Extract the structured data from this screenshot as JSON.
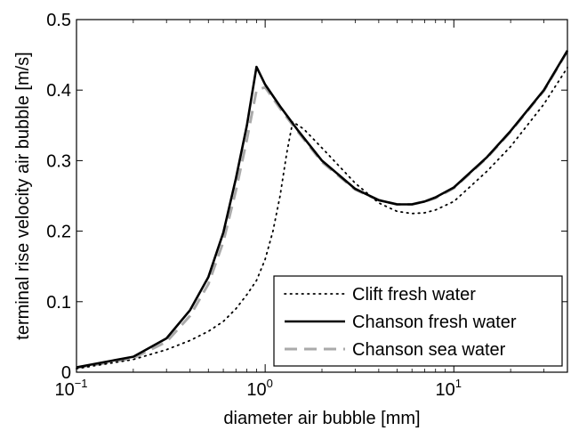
{
  "chart_data": {
    "type": "line",
    "title": "",
    "xlabel": "diameter air bubble [mm]",
    "ylabel": "terminal rise velocity air bubble [m/s]",
    "xscale": "log",
    "xlim": [
      0.1,
      40
    ],
    "ylim": [
      0,
      0.5
    ],
    "grid": false,
    "legend_position": "bottom-right",
    "x_ticks": [
      {
        "value": 0.1,
        "base": "10",
        "exp": "−1"
      },
      {
        "value": 1,
        "base": "10",
        "exp": "0"
      },
      {
        "value": 10,
        "base": "10",
        "exp": "1"
      }
    ],
    "y_ticks": [
      {
        "value": 0,
        "label": "0"
      },
      {
        "value": 0.1,
        "label": "0.1"
      },
      {
        "value": 0.2,
        "label": "0.2"
      },
      {
        "value": 0.3,
        "label": "0.3"
      },
      {
        "value": 0.4,
        "label": "0.4"
      },
      {
        "value": 0.5,
        "label": "0.5"
      }
    ],
    "series": [
      {
        "name": "Clift fresh water",
        "style": "dotted",
        "color": "#000000",
        "x": [
          0.1,
          0.2,
          0.3,
          0.4,
          0.5,
          0.6,
          0.7,
          0.8,
          0.9,
          1.0,
          1.1,
          1.2,
          1.3,
          1.4,
          1.6,
          2,
          3,
          4,
          5,
          6,
          7,
          8,
          10,
          15,
          20,
          30,
          40
        ],
        "y": [
          0.005,
          0.018,
          0.032,
          0.045,
          0.058,
          0.072,
          0.09,
          0.11,
          0.13,
          0.16,
          0.2,
          0.25,
          0.31,
          0.355,
          0.345,
          0.318,
          0.268,
          0.24,
          0.228,
          0.225,
          0.226,
          0.23,
          0.242,
          0.285,
          0.32,
          0.38,
          0.432
        ]
      },
      {
        "name": "Chanson fresh water",
        "style": "solid",
        "color": "#000000",
        "x": [
          0.1,
          0.2,
          0.3,
          0.4,
          0.5,
          0.6,
          0.7,
          0.8,
          0.9,
          1.0,
          1.2,
          1.5,
          2,
          3,
          4,
          5,
          6,
          7,
          8,
          10,
          15,
          20,
          30,
          40
        ],
        "y": [
          0.007,
          0.022,
          0.048,
          0.088,
          0.135,
          0.198,
          0.275,
          0.35,
          0.433,
          0.408,
          0.377,
          0.342,
          0.3,
          0.26,
          0.244,
          0.238,
          0.238,
          0.242,
          0.248,
          0.262,
          0.305,
          0.342,
          0.4,
          0.456
        ]
      },
      {
        "name": "Chanson sea water",
        "style": "dashed",
        "color": "#aaaaaa",
        "x": [
          0.1,
          0.2,
          0.3,
          0.4,
          0.5,
          0.6,
          0.7,
          0.8,
          0.9,
          1.0,
          1.2,
          1.5,
          2,
          3,
          4,
          5,
          6,
          7,
          8,
          10,
          15,
          20,
          30,
          40
        ],
        "y": [
          0.006,
          0.02,
          0.043,
          0.08,
          0.125,
          0.185,
          0.258,
          0.33,
          0.4,
          0.404,
          0.374,
          0.34,
          0.298,
          0.259,
          0.244,
          0.238,
          0.238,
          0.242,
          0.247,
          0.261,
          0.304,
          0.341,
          0.399,
          0.455
        ]
      }
    ]
  }
}
